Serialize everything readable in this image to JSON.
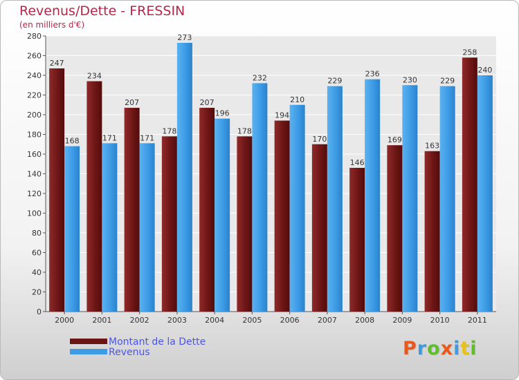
{
  "title": "Revenus/Dette - FRESSIN",
  "subtitle": "(en milliers d'€)",
  "colors": {
    "dette": "#7a1c1c",
    "revenus": "#3d9be5",
    "title": "#b3284a",
    "legend_text": "#4a55e8"
  },
  "legend": [
    {
      "label": "Montant de la Dette",
      "color": "#6a1414"
    },
    {
      "label": "Revenus",
      "color": "#3d9be5"
    }
  ],
  "logo": {
    "text": "Proxiti",
    "letter_colors": [
      "#e85a1c",
      "#3d9be5",
      "#5fbf2a",
      "#e85a1c",
      "#3d9be5",
      "#e8c21c",
      "#5fbf2a"
    ]
  },
  "chart_data": {
    "type": "bar",
    "title": "Revenus/Dette - FRESSIN",
    "subtitle": "(en milliers d'€)",
    "categories": [
      "2000",
      "2001",
      "2002",
      "2003",
      "2004",
      "2005",
      "2006",
      "2007",
      "2008",
      "2009",
      "2010",
      "2011"
    ],
    "series": [
      {
        "name": "Montant de la Dette",
        "values": [
          247,
          234,
          207,
          178,
          207,
          178,
          194,
          170,
          146,
          169,
          163,
          258
        ]
      },
      {
        "name": "Revenus",
        "values": [
          168,
          171,
          171,
          273,
          196,
          232,
          210,
          229,
          236,
          230,
          229,
          240
        ]
      }
    ],
    "ylim": [
      0,
      280
    ],
    "yticks": [
      0,
      20,
      40,
      60,
      80,
      100,
      120,
      140,
      160,
      180,
      200,
      220,
      240,
      260,
      280
    ],
    "grid": true,
    "legend_position": "bottom-left"
  }
}
